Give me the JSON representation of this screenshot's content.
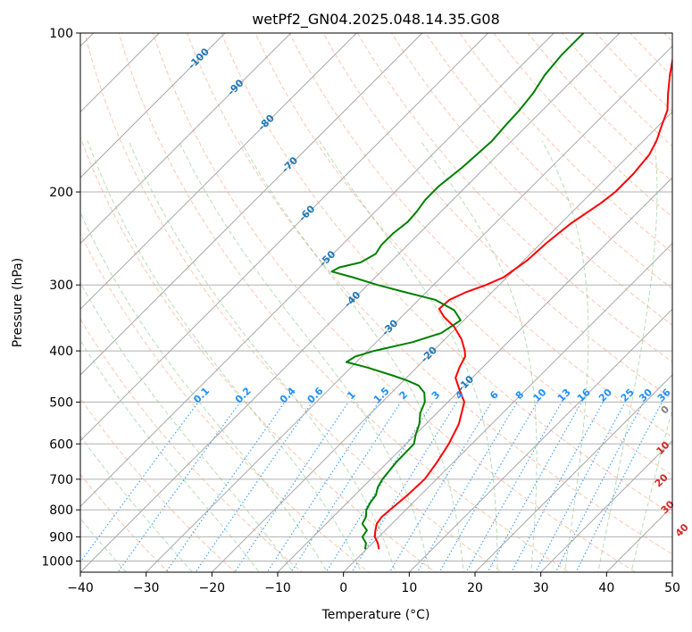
{
  "chart_data": {
    "type": "skew-t",
    "title": "wetPf2_GN04.2025.048.14.35.G08",
    "xlabel": "Temperature (°C)",
    "ylabel": "Pressure (hPa)",
    "xlim": [
      -40,
      50
    ],
    "ylim": [
      1050,
      100
    ],
    "y_scale": "log",
    "grid": true,
    "x_ticks": [
      "−40",
      "−30",
      "−20",
      "−10",
      "0",
      "10",
      "20",
      "30",
      "40",
      "50"
    ],
    "y_ticks": [
      "100",
      "200",
      "300",
      "400",
      "500",
      "600",
      "700",
      "800",
      "900",
      "1000"
    ],
    "colors": {
      "temperature": "#ff0000",
      "dewpoint": "#008000",
      "isotherm_label": "#1f77b4",
      "mixing_ratio": "#1e90ff",
      "dry_adiabat": "#ff7f50",
      "moist_adiabat": "#2ca02c",
      "moist_adiabat_label": "#d62728"
    },
    "isotherm_labels": [
      "-100",
      "-90",
      "-80",
      "-70",
      "-60",
      "-50",
      "-40",
      "-30",
      "-20",
      "-10"
    ],
    "mixing_ratio_labels": [
      "0.1",
      "0.2",
      "0.4",
      "0.6",
      "1",
      "1.5",
      "2",
      "3",
      "4",
      "6",
      "8",
      "10",
      "13",
      "16",
      "20",
      "25",
      "30",
      "36"
    ],
    "moist_adiabat_labels": [
      "0",
      "10",
      "20",
      "30",
      "40"
    ],
    "series": [
      {
        "name": "temperature",
        "values": [
          [
            950,
            1.9
          ],
          [
            925,
            0.8
          ],
          [
            900,
            -0.6
          ],
          [
            875,
            -1.5
          ],
          [
            850,
            -2.3
          ],
          [
            825,
            -2.6
          ],
          [
            800,
            -2.4
          ],
          [
            750,
            -2.0
          ],
          [
            700,
            -1.8
          ],
          [
            650,
            -2.5
          ],
          [
            600,
            -3.5
          ],
          [
            550,
            -5.0
          ],
          [
            500,
            -7.5
          ],
          [
            475,
            -10.0
          ],
          [
            450,
            -12.5
          ],
          [
            430,
            -13.5
          ],
          [
            410,
            -14.3
          ],
          [
            400,
            -15.2
          ],
          [
            380,
            -17.5
          ],
          [
            360,
            -20.5
          ],
          [
            345,
            -23.5
          ],
          [
            333,
            -25.5
          ],
          [
            320,
            -25.3
          ],
          [
            310,
            -24.0
          ],
          [
            300,
            -22.0
          ],
          [
            290,
            -20.5
          ],
          [
            270,
            -19.5
          ],
          [
            250,
            -19.2
          ],
          [
            230,
            -18.5
          ],
          [
            210,
            -17.0
          ],
          [
            200,
            -16.5
          ],
          [
            185,
            -16.5
          ],
          [
            170,
            -17.0
          ],
          [
            160,
            -18.0
          ],
          [
            150,
            -19.5
          ],
          [
            140,
            -21.0
          ],
          [
            130,
            -23.5
          ],
          [
            120,
            -26.0
          ],
          [
            110,
            -28.5
          ],
          [
            100,
            -31.0
          ]
        ]
      },
      {
        "name": "dewpoint",
        "values": [
          [
            950,
            -0.2
          ],
          [
            925,
            -1.0
          ],
          [
            900,
            -2.5
          ],
          [
            875,
            -2.8
          ],
          [
            850,
            -4.5
          ],
          [
            825,
            -5.0
          ],
          [
            800,
            -6.0
          ],
          [
            775,
            -6.5
          ],
          [
            750,
            -6.8
          ],
          [
            725,
            -7.7
          ],
          [
            700,
            -8.2
          ],
          [
            650,
            -8.7
          ],
          [
            600,
            -8.8
          ],
          [
            575,
            -10.0
          ],
          [
            550,
            -11.0
          ],
          [
            525,
            -12.5
          ],
          [
            500,
            -13.5
          ],
          [
            480,
            -15.0
          ],
          [
            465,
            -17.0
          ],
          [
            455,
            -19.5
          ],
          [
            445,
            -22.5
          ],
          [
            430,
            -27.5
          ],
          [
            420,
            -31.5
          ],
          [
            410,
            -31.0
          ],
          [
            400,
            -29.0
          ],
          [
            385,
            -24.5
          ],
          [
            370,
            -21.5
          ],
          [
            350,
            -20.5
          ],
          [
            335,
            -23.0
          ],
          [
            320,
            -27.5
          ],
          [
            310,
            -33.0
          ],
          [
            300,
            -38.5
          ],
          [
            290,
            -43.5
          ],
          [
            283,
            -47.5
          ],
          [
            278,
            -47.0
          ],
          [
            272,
            -44.5
          ],
          [
            262,
            -43.5
          ],
          [
            252,
            -44.0
          ],
          [
            240,
            -44.0
          ],
          [
            228,
            -43.5
          ],
          [
            218,
            -43.7
          ],
          [
            207,
            -44.2
          ],
          [
            195,
            -44.2
          ],
          [
            180,
            -43.5
          ],
          [
            160,
            -43.0
          ],
          [
            150,
            -43.3
          ],
          [
            140,
            -43.5
          ],
          [
            130,
            -44.0
          ],
          [
            120,
            -45.0
          ],
          [
            110,
            -45.5
          ],
          [
            100,
            -45.5
          ]
        ]
      }
    ]
  }
}
